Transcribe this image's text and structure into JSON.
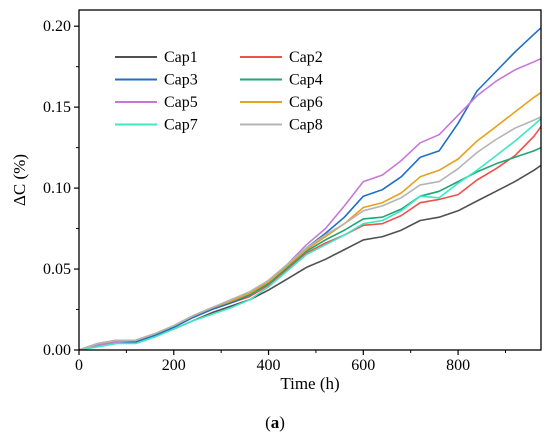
{
  "chart_data": {
    "type": "line",
    "xlabel": "Time (h)",
    "ylabel": "ΔC (%)",
    "xlim": [
      0,
      975
    ],
    "ylim": [
      0,
      0.21
    ],
    "x_ticks": [
      "0",
      "200",
      "400",
      "600",
      "800"
    ],
    "y_ticks": [
      "0.00",
      "0.05",
      "0.10",
      "0.15",
      "0.20"
    ],
    "grid": false,
    "legend": "top-left, two columns",
    "caption": {
      "open": "(",
      "letter": "a",
      "close": ")"
    },
    "series": [
      {
        "name": "Cap1",
        "color": "#505050",
        "x": [
          0,
          40,
          80,
          120,
          160,
          200,
          240,
          280,
          320,
          360,
          400,
          440,
          480,
          520,
          560,
          600,
          640,
          680,
          720,
          760,
          800,
          840,
          880,
          920,
          960,
          975
        ],
        "y": [
          0.0,
          0.004,
          0.006,
          0.006,
          0.009,
          0.013,
          0.018,
          0.023,
          0.027,
          0.031,
          0.037,
          0.044,
          0.051,
          0.056,
          0.062,
          0.068,
          0.07,
          0.074,
          0.08,
          0.082,
          0.086,
          0.092,
          0.098,
          0.104,
          0.111,
          0.114
        ]
      },
      {
        "name": "Cap2",
        "color": "#f0504a",
        "x": [
          0,
          40,
          80,
          120,
          160,
          200,
          240,
          280,
          320,
          360,
          400,
          440,
          480,
          520,
          560,
          600,
          640,
          680,
          720,
          760,
          800,
          840,
          880,
          920,
          960,
          975
        ],
        "y": [
          0.0,
          0.004,
          0.006,
          0.006,
          0.01,
          0.014,
          0.02,
          0.025,
          0.029,
          0.033,
          0.04,
          0.05,
          0.06,
          0.066,
          0.071,
          0.077,
          0.078,
          0.083,
          0.091,
          0.093,
          0.096,
          0.105,
          0.112,
          0.12,
          0.132,
          0.138
        ]
      },
      {
        "name": "Cap3",
        "color": "#1f6fc5",
        "x": [
          0,
          40,
          80,
          120,
          160,
          200,
          240,
          280,
          320,
          360,
          400,
          440,
          480,
          520,
          560,
          600,
          640,
          680,
          720,
          760,
          800,
          840,
          880,
          920,
          960,
          975
        ],
        "y": [
          0.0,
          0.003,
          0.005,
          0.005,
          0.009,
          0.014,
          0.02,
          0.025,
          0.029,
          0.034,
          0.042,
          0.052,
          0.063,
          0.072,
          0.082,
          0.095,
          0.099,
          0.107,
          0.119,
          0.123,
          0.14,
          0.16,
          0.172,
          0.184,
          0.195,
          0.199
        ]
      },
      {
        "name": "Cap4",
        "color": "#1ea578",
        "x": [
          0,
          40,
          80,
          120,
          160,
          200,
          240,
          280,
          320,
          360,
          400,
          440,
          480,
          520,
          560,
          600,
          640,
          680,
          720,
          760,
          800,
          840,
          880,
          920,
          960,
          975
        ],
        "y": [
          0.0,
          0.004,
          0.006,
          0.006,
          0.01,
          0.015,
          0.021,
          0.026,
          0.03,
          0.034,
          0.041,
          0.051,
          0.061,
          0.068,
          0.074,
          0.081,
          0.082,
          0.087,
          0.095,
          0.098,
          0.104,
          0.11,
          0.115,
          0.119,
          0.123,
          0.125
        ]
      },
      {
        "name": "Cap5",
        "color": "#c877d9",
        "x": [
          0,
          40,
          80,
          120,
          160,
          200,
          240,
          280,
          320,
          360,
          400,
          440,
          480,
          520,
          560,
          600,
          640,
          680,
          720,
          760,
          800,
          840,
          880,
          920,
          960,
          975
        ],
        "y": [
          0.0,
          0.003,
          0.005,
          0.006,
          0.01,
          0.015,
          0.021,
          0.026,
          0.031,
          0.035,
          0.043,
          0.053,
          0.065,
          0.075,
          0.089,
          0.104,
          0.108,
          0.117,
          0.128,
          0.133,
          0.145,
          0.157,
          0.166,
          0.173,
          0.178,
          0.18
        ]
      },
      {
        "name": "Cap6",
        "color": "#e8a11a",
        "x": [
          0,
          40,
          80,
          120,
          160,
          200,
          240,
          280,
          320,
          360,
          400,
          440,
          480,
          520,
          560,
          600,
          640,
          680,
          720,
          760,
          800,
          840,
          880,
          920,
          960,
          975
        ],
        "y": [
          0.0,
          0.004,
          0.006,
          0.006,
          0.01,
          0.015,
          0.021,
          0.026,
          0.03,
          0.035,
          0.042,
          0.052,
          0.062,
          0.07,
          0.078,
          0.088,
          0.091,
          0.097,
          0.107,
          0.111,
          0.118,
          0.129,
          0.138,
          0.147,
          0.156,
          0.159
        ]
      },
      {
        "name": "Cap7",
        "color": "#3de8c4",
        "x": [
          0,
          40,
          80,
          120,
          160,
          200,
          240,
          280,
          320,
          360,
          400,
          440,
          480,
          520,
          560,
          600,
          640,
          680,
          720,
          760,
          800,
          840,
          880,
          920,
          960,
          975
        ],
        "y": [
          0.0,
          0.002,
          0.004,
          0.004,
          0.008,
          0.013,
          0.018,
          0.022,
          0.026,
          0.031,
          0.039,
          0.049,
          0.059,
          0.065,
          0.071,
          0.078,
          0.08,
          0.086,
          0.095,
          0.094,
          0.103,
          0.111,
          0.12,
          0.129,
          0.139,
          0.143
        ]
      },
      {
        "name": "Cap8",
        "color": "#b4b4b4",
        "x": [
          0,
          40,
          80,
          120,
          160,
          200,
          240,
          280,
          320,
          360,
          400,
          440,
          480,
          520,
          560,
          600,
          640,
          680,
          720,
          760,
          800,
          840,
          880,
          920,
          960,
          975
        ],
        "y": [
          0.0,
          0.004,
          0.006,
          0.006,
          0.01,
          0.015,
          0.021,
          0.026,
          0.031,
          0.036,
          0.043,
          0.053,
          0.063,
          0.071,
          0.078,
          0.086,
          0.089,
          0.094,
          0.102,
          0.104,
          0.112,
          0.122,
          0.13,
          0.137,
          0.142,
          0.144
        ]
      }
    ]
  }
}
